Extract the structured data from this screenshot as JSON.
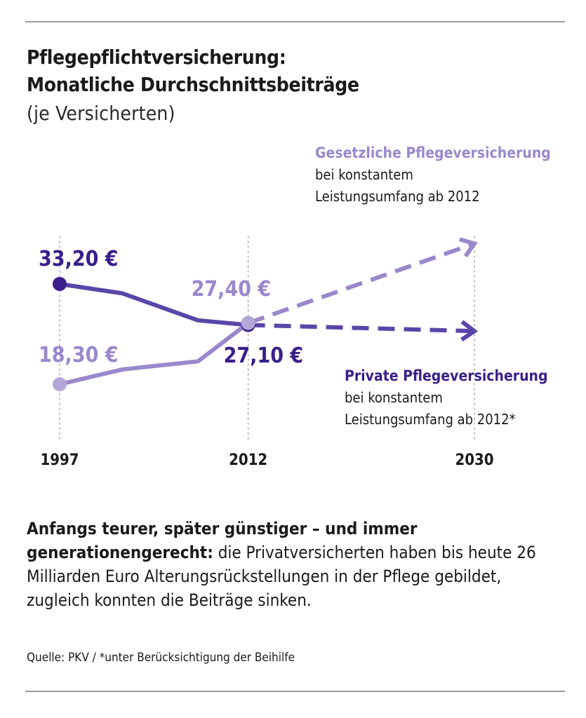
{
  "header": {
    "title_line1": "Pflegepflichtversicherung:",
    "title_line2": "Monatliche Durchschnittsbeiträge",
    "subtitle": "(je Versicherten)"
  },
  "colors": {
    "private": "#3a1f8a",
    "private_line": "#5a45a8",
    "statutory": "#9a88cc",
    "statutory_dot": "#b4a7d8",
    "guides": "#b0b0b0",
    "rule": "#9a9a9a"
  },
  "chart_data": {
    "type": "line",
    "x_ticks": [
      "1997",
      "2012",
      "2030"
    ],
    "series": [
      {
        "name": "Private Pflegeversicherung",
        "note_line1": "bei konstantem",
        "note_line2": "Leistungsumfang ab 2012*",
        "points": [
          {
            "x": 1997,
            "y": 33.2
          },
          {
            "x": 2002,
            "y": 31.8
          },
          {
            "x": 2008,
            "y": 27.8
          },
          {
            "x": 2012,
            "y": 27.1
          }
        ],
        "projection": [
          {
            "x": 2012,
            "y": 27.1
          },
          {
            "x": 2030,
            "y": 26.2
          }
        ],
        "labels": [
          {
            "x": 1997,
            "text": "33,20 €"
          },
          {
            "x": 2012,
            "text": "27,10 €"
          }
        ]
      },
      {
        "name": "Gesetzliche Pflegeversicherung",
        "note_line1": "bei konstantem",
        "note_line2": "Leistungsumfang ab 2012",
        "points": [
          {
            "x": 1997,
            "y": 18.3
          },
          {
            "x": 2002,
            "y": 20.5
          },
          {
            "x": 2008,
            "y": 21.7
          },
          {
            "x": 2012,
            "y": 27.4
          }
        ],
        "projection": [
          {
            "x": 2012,
            "y": 27.4
          },
          {
            "x": 2030,
            "y": 39.2
          }
        ],
        "labels": [
          {
            "x": 1997,
            "text": "18,30 €"
          },
          {
            "x": 2012,
            "text": "27,40 €"
          }
        ]
      }
    ],
    "xlim": [
      1997,
      2030
    ],
    "ylim": [
      18.3,
      33.2
    ]
  },
  "description": {
    "bold": "Anfangs teurer, später günstiger – und immer generationengerecht:",
    "text": " die Privatversicherten haben bis heute 26 Milliarden Euro Alterungsrückstellungen in der Pflege gebildet, zugleich konnten die Beiträge sinken."
  },
  "source": "Quelle: PKV / *unter Berücksichtigung der Beihilfe"
}
